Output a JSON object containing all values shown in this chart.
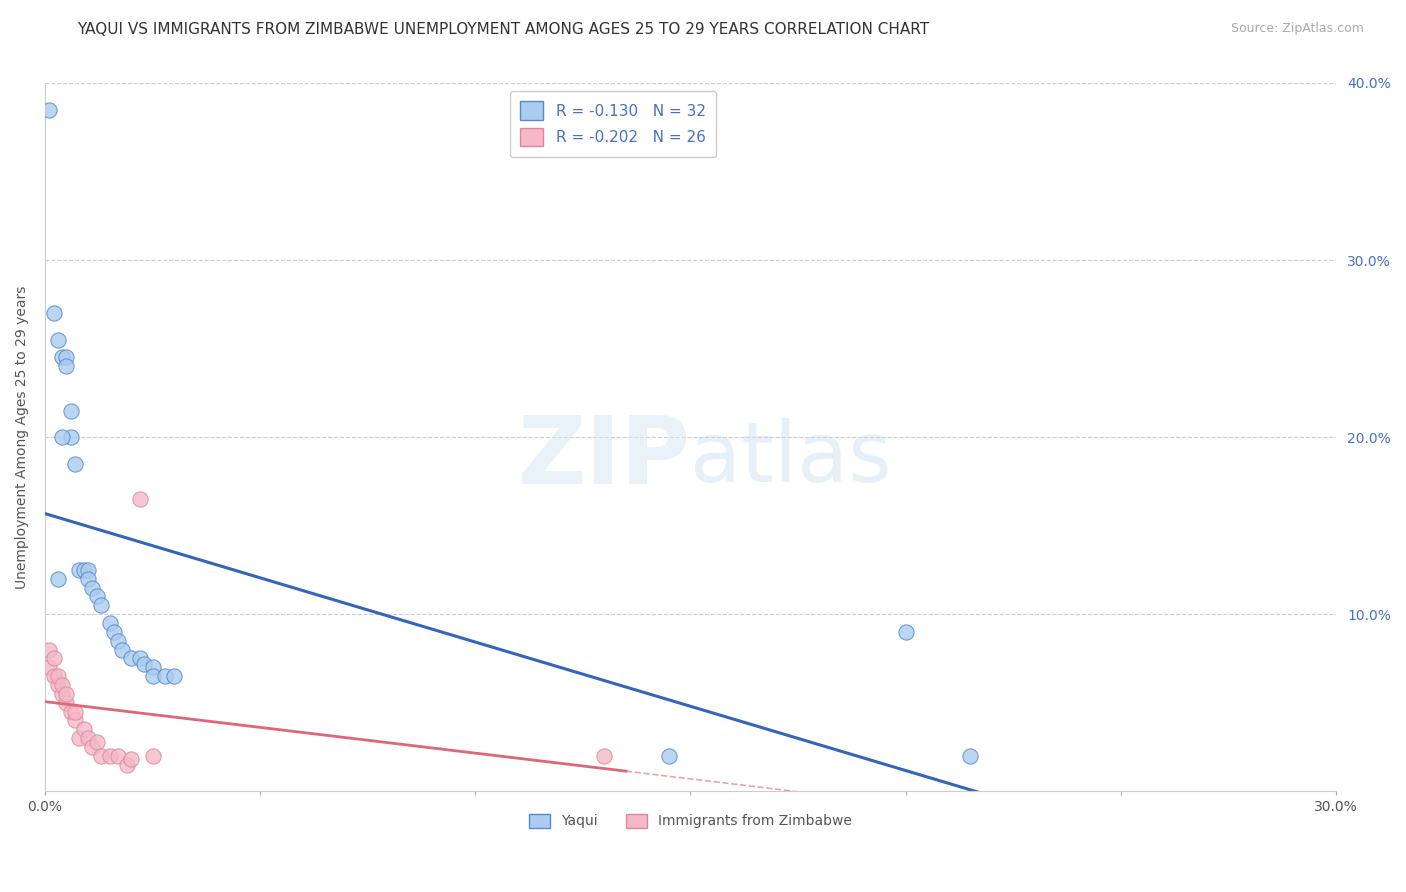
{
  "title": "YAQUI VS IMMIGRANTS FROM ZIMBABWE UNEMPLOYMENT AMONG AGES 25 TO 29 YEARS CORRELATION CHART",
  "source": "Source: ZipAtlas.com",
  "ylabel": "Unemployment Among Ages 25 to 29 years",
  "xlim": [
    0.0,
    0.3
  ],
  "ylim": [
    0.0,
    0.4
  ],
  "xticks": [
    0.0,
    0.05,
    0.1,
    0.15,
    0.2,
    0.25,
    0.3
  ],
  "xtick_labels": [
    "0.0%",
    "",
    "",
    "",
    "",
    "",
    "30.0%"
  ],
  "yticks": [
    0.0,
    0.1,
    0.2,
    0.3,
    0.4
  ],
  "ytick_labels_right": [
    "",
    "10.0%",
    "20.0%",
    "30.0%",
    "40.0%"
  ],
  "legend_r1": "-0.130",
  "legend_n1": "32",
  "legend_r2": "-0.202",
  "legend_n2": "26",
  "series1_name": "Yaqui",
  "series2_name": "Immigrants from Zimbabwe",
  "series1_color": "#aaccee",
  "series2_color": "#f4b8c8",
  "series1_edge_color": "#5588cc",
  "series2_edge_color": "#dd8899",
  "series1_line_color": "#3366bb",
  "series2_line_color": "#dd6677",
  "background_color": "#ffffff",
  "yaqui_x": [
    0.001,
    0.002,
    0.003,
    0.004,
    0.005,
    0.005,
    0.006,
    0.006,
    0.007,
    0.008,
    0.009,
    0.01,
    0.01,
    0.011,
    0.012,
    0.013,
    0.015,
    0.016,
    0.017,
    0.018,
    0.02,
    0.022,
    0.023,
    0.025,
    0.025,
    0.028,
    0.03,
    0.2,
    0.215,
    0.145,
    0.003,
    0.004
  ],
  "yaqui_y": [
    0.385,
    0.27,
    0.255,
    0.245,
    0.245,
    0.24,
    0.215,
    0.2,
    0.185,
    0.125,
    0.125,
    0.125,
    0.12,
    0.115,
    0.11,
    0.105,
    0.095,
    0.09,
    0.085,
    0.08,
    0.075,
    0.075,
    0.072,
    0.07,
    0.065,
    0.065,
    0.065,
    0.09,
    0.02,
    0.02,
    0.12,
    0.2
  ],
  "zimb_x": [
    0.001,
    0.001,
    0.002,
    0.002,
    0.003,
    0.003,
    0.004,
    0.004,
    0.005,
    0.005,
    0.006,
    0.007,
    0.007,
    0.008,
    0.009,
    0.01,
    0.011,
    0.012,
    0.013,
    0.015,
    0.017,
    0.019,
    0.02,
    0.022,
    0.025,
    0.13
  ],
  "zimb_y": [
    0.07,
    0.08,
    0.065,
    0.075,
    0.06,
    0.065,
    0.055,
    0.06,
    0.05,
    0.055,
    0.045,
    0.04,
    0.045,
    0.03,
    0.035,
    0.03,
    0.025,
    0.028,
    0.02,
    0.02,
    0.02,
    0.015,
    0.018,
    0.165,
    0.02,
    0.02
  ],
  "title_fontsize": 11,
  "axis_label_fontsize": 10,
  "tick_fontsize": 10,
  "legend_fontsize": 11,
  "marker_size": 120
}
